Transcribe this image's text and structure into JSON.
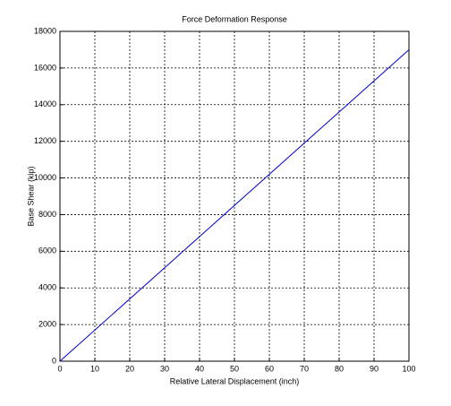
{
  "chart_data": {
    "type": "line",
    "title": "Force Deformation Response",
    "x_label": "Relative Lateral Displacement (inch)",
    "y_label": "Base Shear (kip)",
    "x": [
      0,
      100
    ],
    "values": [
      0,
      17000
    ],
    "color": "#0000c8",
    "xlim": [
      0,
      100
    ],
    "xticks": [
      0,
      10,
      20,
      30,
      40,
      50,
      60,
      70,
      80,
      90,
      100
    ],
    "ylim": [
      0,
      18000
    ],
    "yticks": [
      0,
      2000,
      4000,
      6000,
      8000,
      10000,
      12000,
      14000,
      16000,
      18000
    ],
    "grid": true
  }
}
